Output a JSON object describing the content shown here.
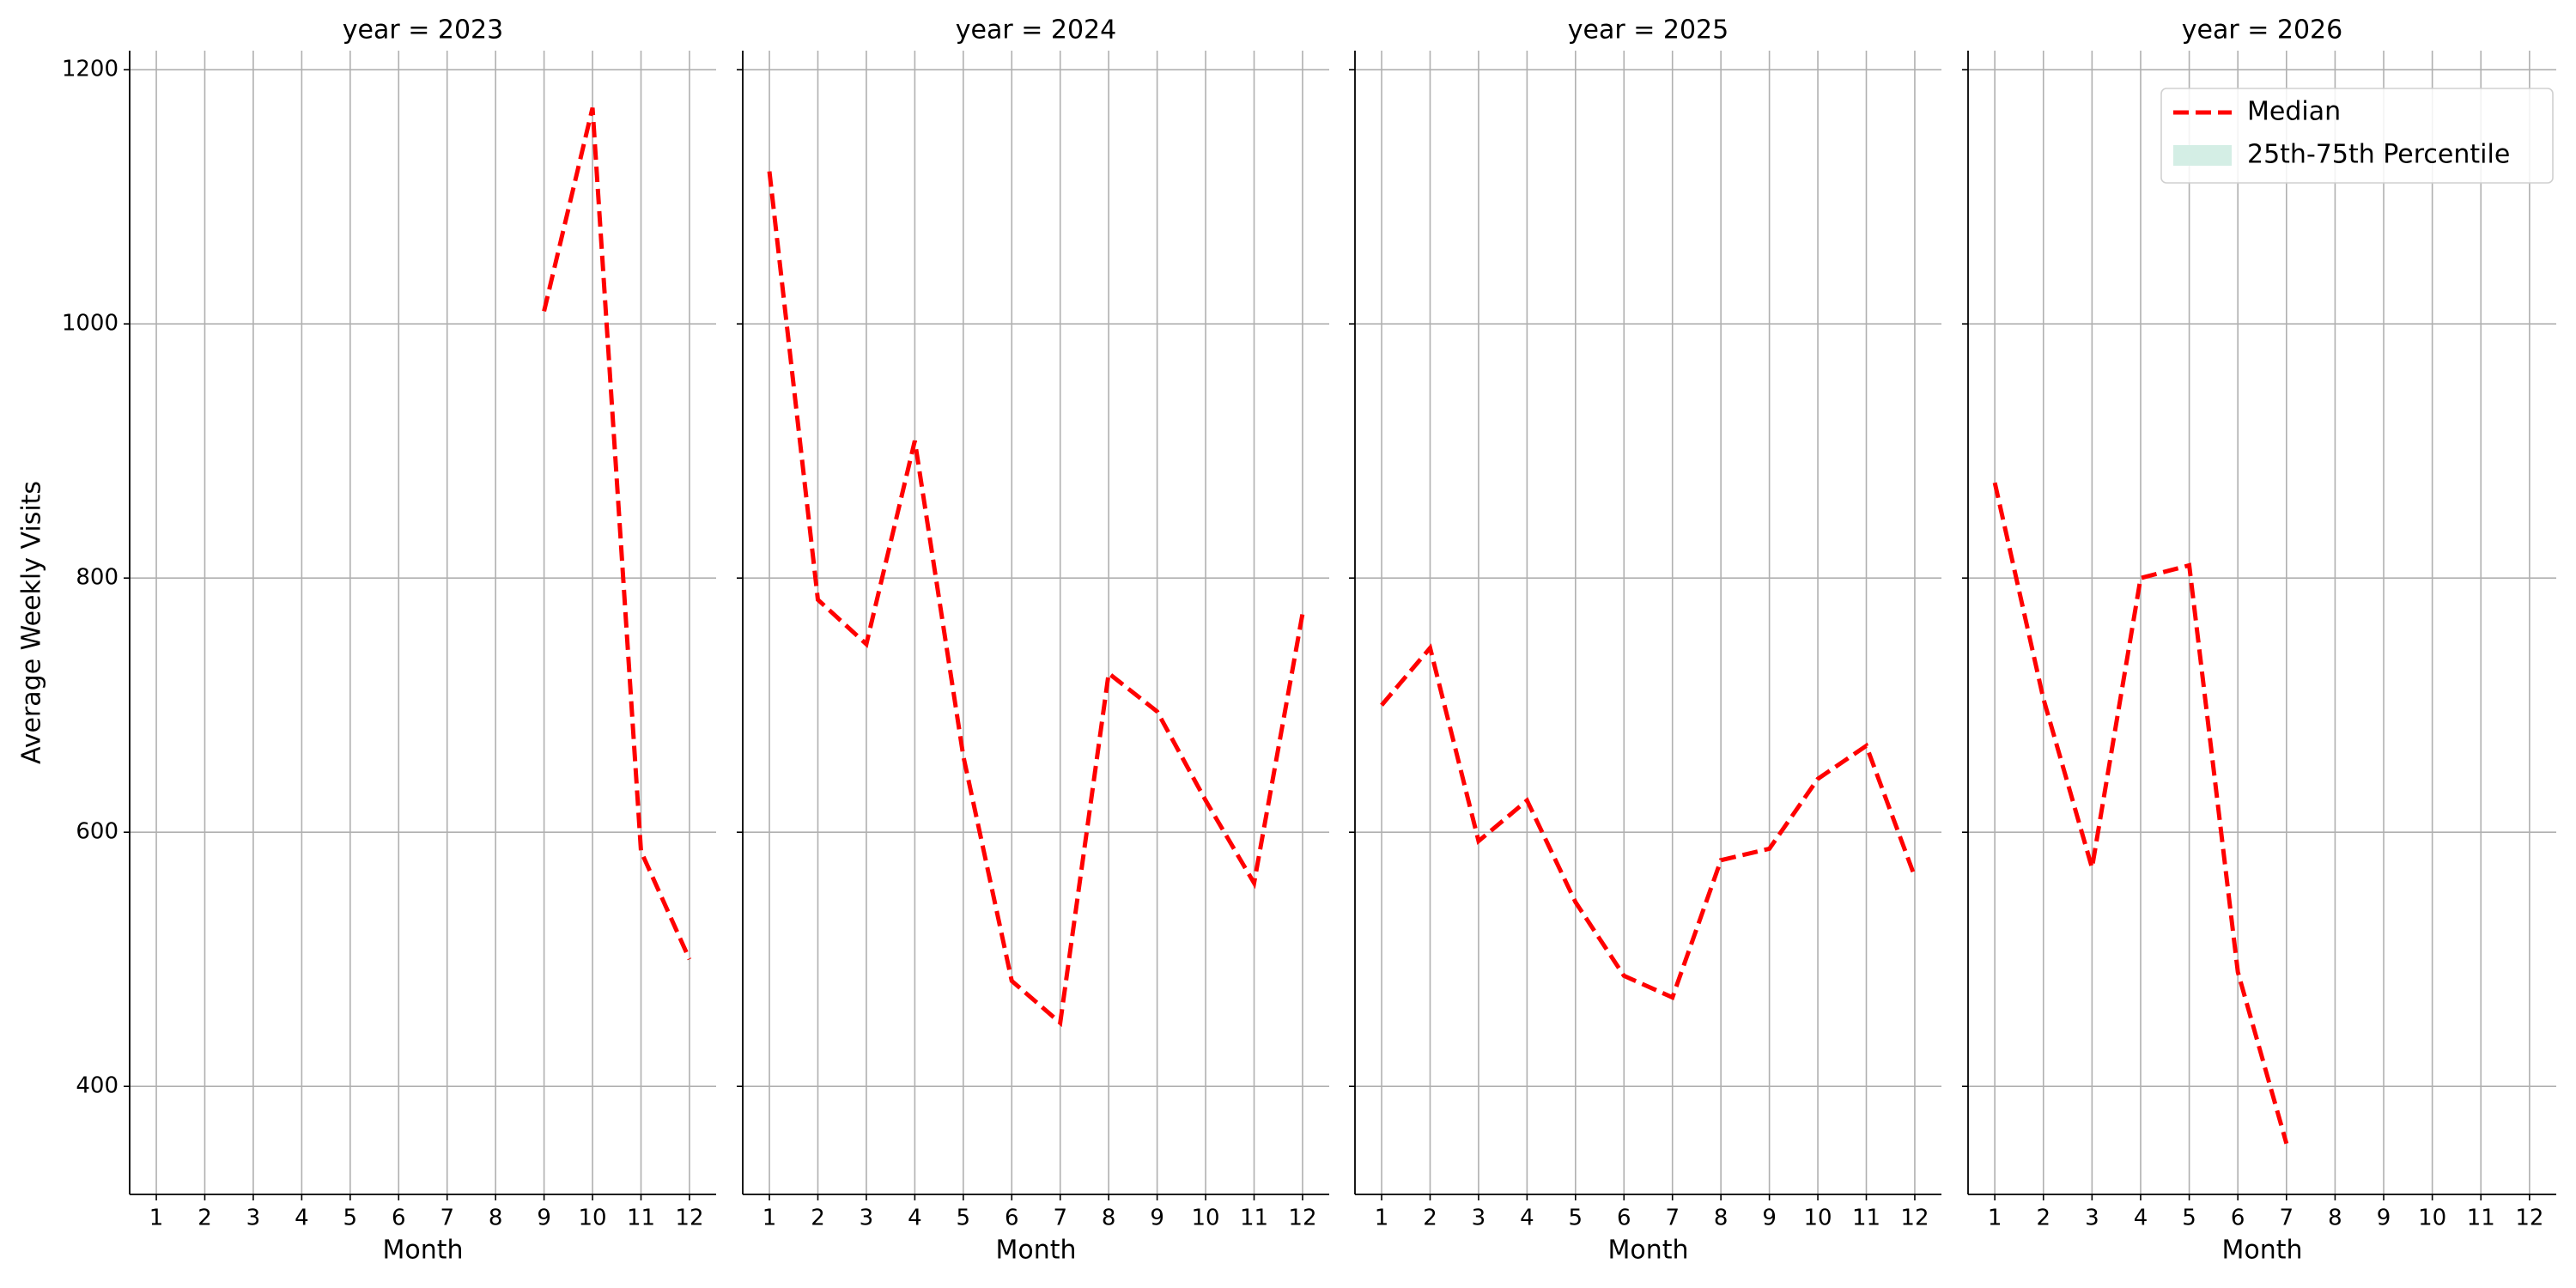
{
  "chart_data": [
    {
      "type": "line",
      "title": "year = 2023",
      "xlabel": "Month",
      "ylabel": "Average Weekly Visits",
      "x": [
        1,
        2,
        3,
        4,
        5,
        6,
        7,
        8,
        9,
        10,
        11,
        12
      ],
      "series": [
        {
          "name": "Median",
          "color": "#ff0000",
          "style": "dashed",
          "values": [
            null,
            null,
            null,
            null,
            null,
            null,
            null,
            null,
            1010,
            1170,
            585,
            500
          ]
        }
      ],
      "xlim": [
        0.45,
        12.55
      ],
      "xticks": [
        1,
        2,
        3,
        4,
        5,
        6,
        7,
        8,
        9,
        10,
        11,
        12
      ],
      "ylim": [
        315,
        1215
      ],
      "yticks": [
        400,
        600,
        800,
        1000,
        1200
      ],
      "grid": true
    },
    {
      "type": "line",
      "title": "year = 2024",
      "xlabel": "Month",
      "x": [
        1,
        2,
        3,
        4,
        5,
        6,
        7,
        8,
        9,
        10,
        11,
        12
      ],
      "series": [
        {
          "name": "Median",
          "color": "#ff0000",
          "style": "dashed",
          "values": [
            1120,
            783,
            748,
            908,
            660,
            483,
            450,
            725,
            695,
            625,
            560,
            772
          ]
        }
      ],
      "xlim": [
        0.45,
        12.55
      ],
      "xticks": [
        1,
        2,
        3,
        4,
        5,
        6,
        7,
        8,
        9,
        10,
        11,
        12
      ],
      "ylim": [
        315,
        1215
      ],
      "yticks": [
        400,
        600,
        800,
        1000,
        1200
      ],
      "grid": true
    },
    {
      "type": "line",
      "title": "year = 2025",
      "xlabel": "Month",
      "x": [
        1,
        2,
        3,
        4,
        5,
        6,
        7,
        8,
        9,
        10,
        11,
        12
      ],
      "series": [
        {
          "name": "Median",
          "color": "#ff0000",
          "style": "dashed",
          "values": [
            700,
            745,
            593,
            625,
            545,
            487,
            470,
            578,
            587,
            642,
            668,
            565
          ]
        }
      ],
      "xlim": [
        0.45,
        12.55
      ],
      "xticks": [
        1,
        2,
        3,
        4,
        5,
        6,
        7,
        8,
        9,
        10,
        11,
        12
      ],
      "ylim": [
        315,
        1215
      ],
      "yticks": [
        400,
        600,
        800,
        1000,
        1200
      ],
      "grid": true
    },
    {
      "type": "line",
      "title": "year = 2026",
      "xlabel": "Month",
      "x": [
        1,
        2,
        3,
        4,
        5,
        6,
        7,
        8,
        9,
        10,
        11,
        12
      ],
      "series": [
        {
          "name": "Median",
          "color": "#ff0000",
          "style": "dashed",
          "values": [
            875,
            705,
            572,
            800,
            810,
            490,
            355,
            null,
            null,
            null,
            null,
            null
          ]
        }
      ],
      "legend": {
        "loc": "upper right",
        "entries": [
          {
            "name": "Median",
            "color": "#ff0000",
            "style": "dashed"
          },
          {
            "name": "25th-75th Percentile",
            "color": "#d4eee5",
            "style": "band"
          }
        ]
      },
      "xlim": [
        0.45,
        12.55
      ],
      "xticks": [
        1,
        2,
        3,
        4,
        5,
        6,
        7,
        8,
        9,
        10,
        11,
        12
      ],
      "ylim": [
        315,
        1215
      ],
      "yticks": [
        400,
        600,
        800,
        1000,
        1200
      ],
      "grid": true
    }
  ]
}
